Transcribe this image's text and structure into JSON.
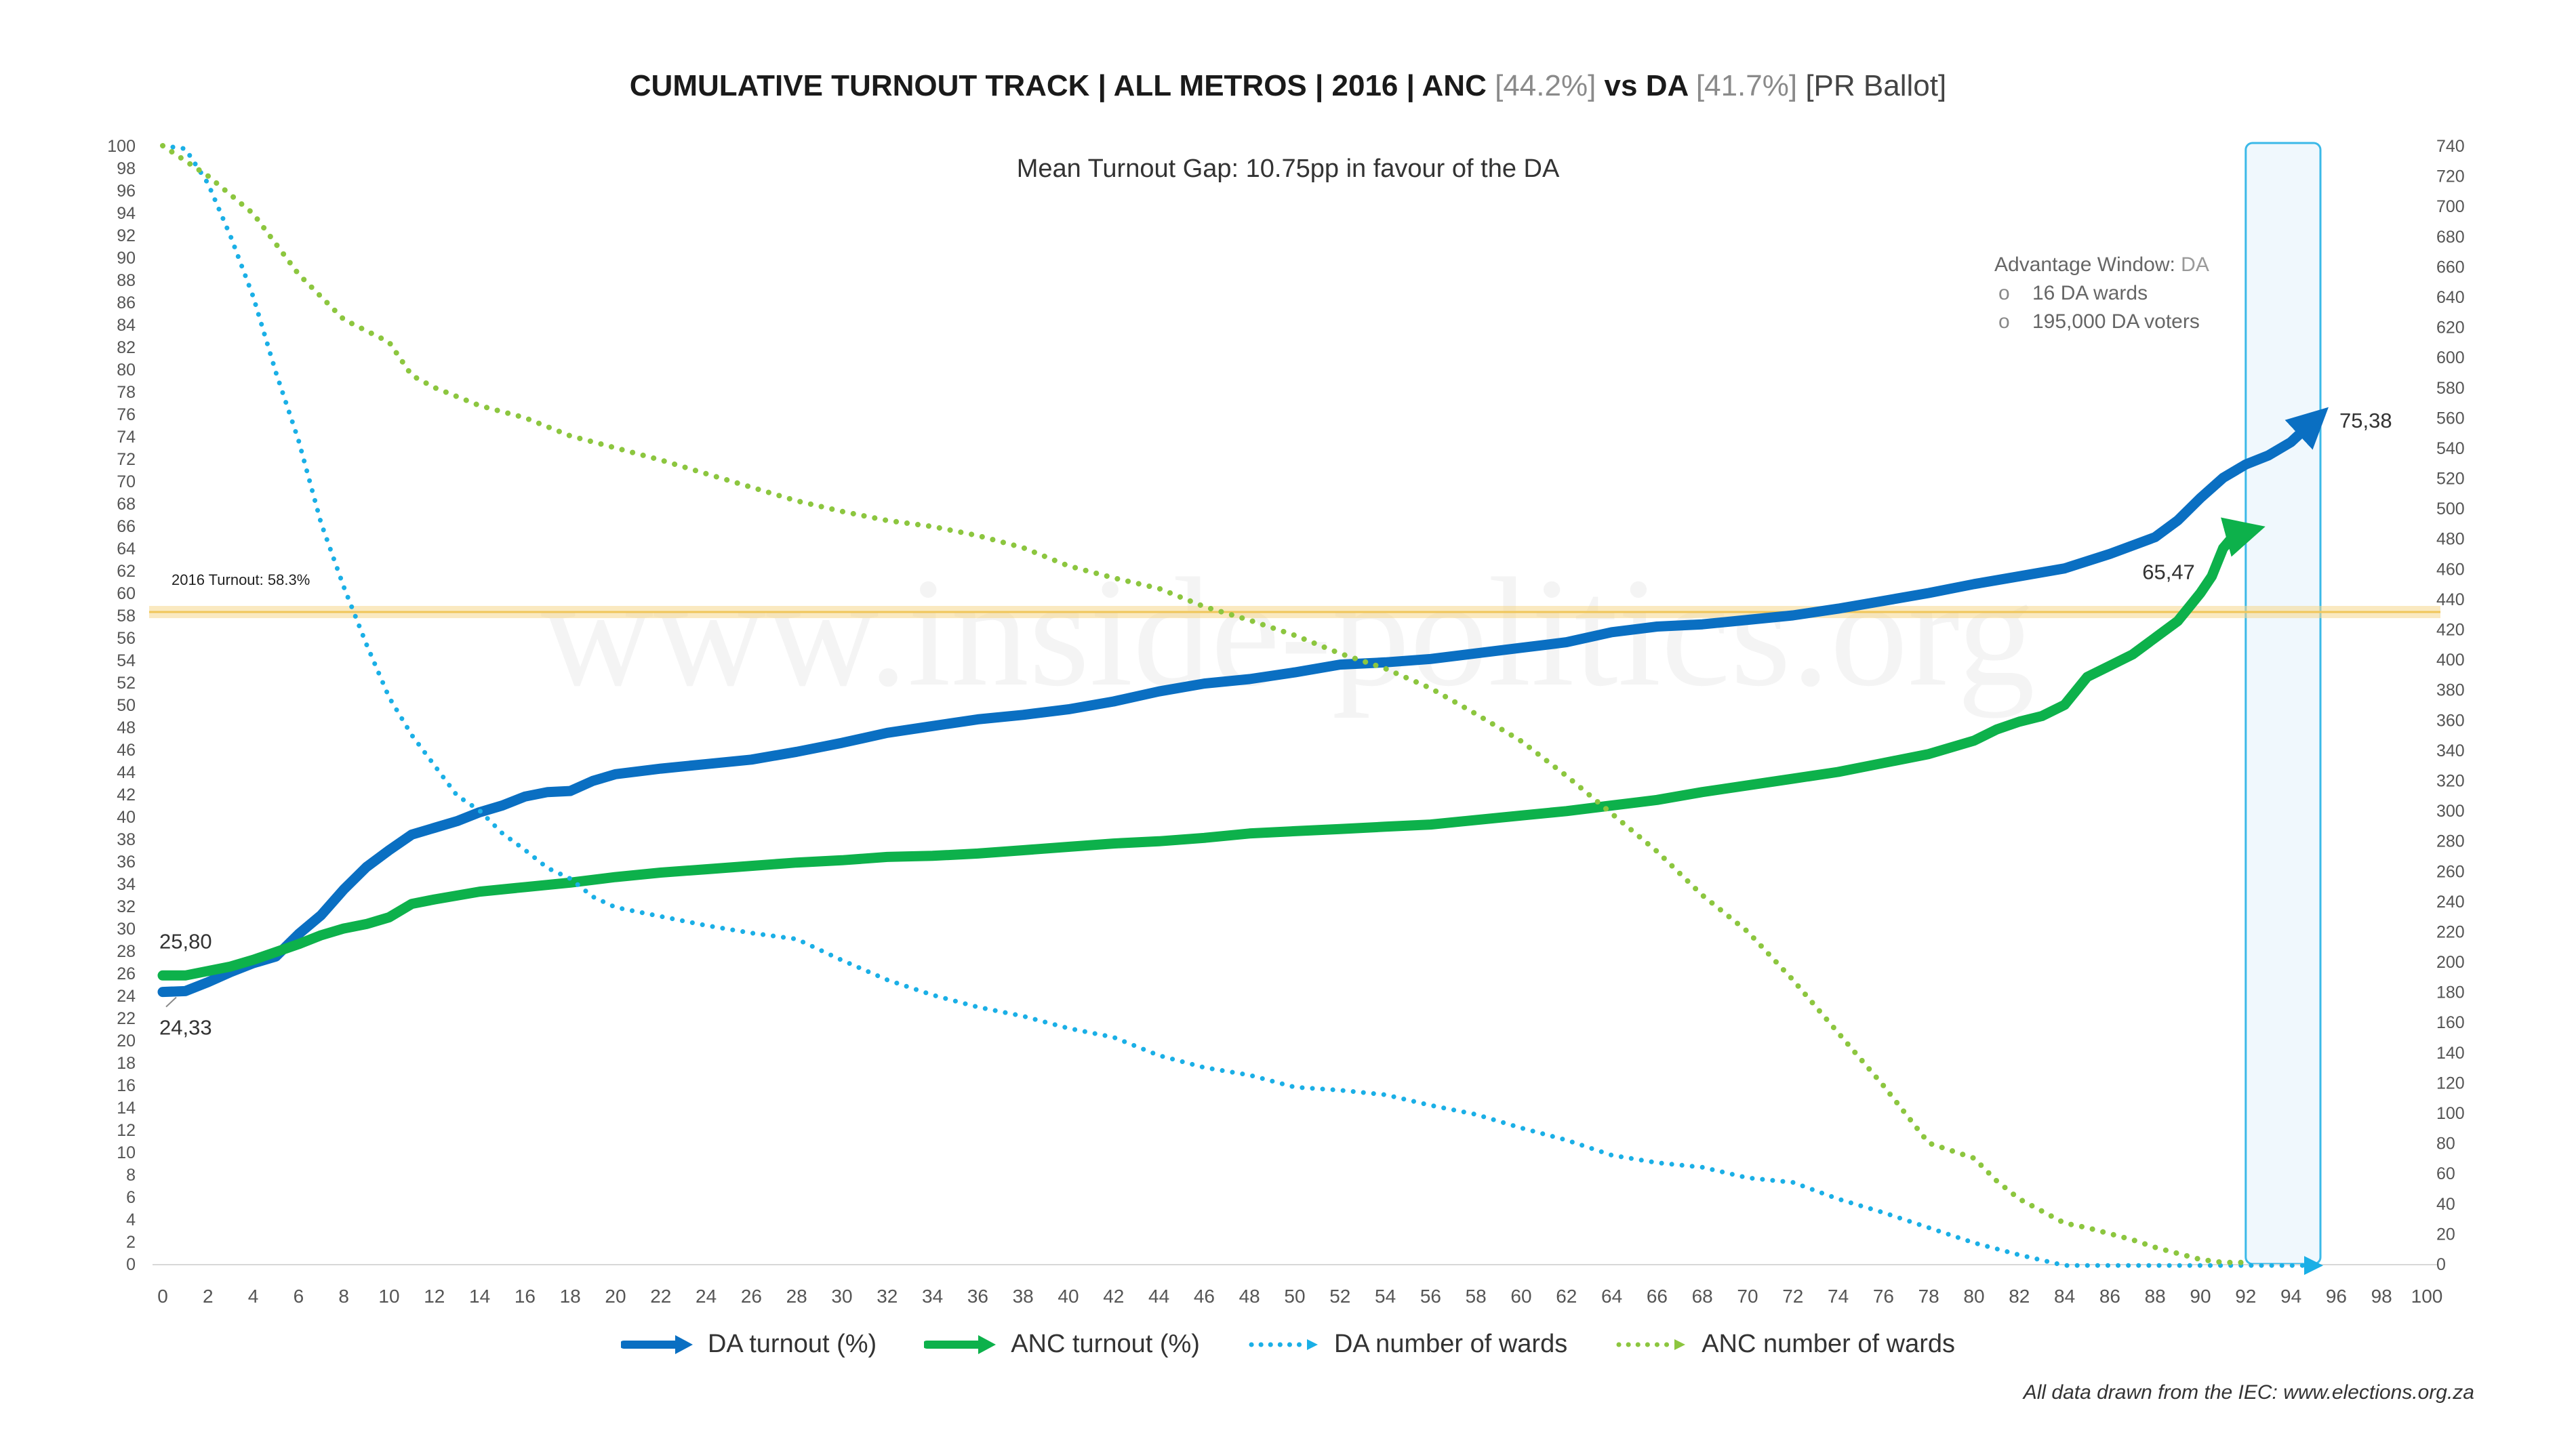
{
  "title": {
    "prefix": "CUMULATIVE TURNOUT TRACK | ALL METROS | 2016 | ANC",
    "anc_pct": "[44.2%]",
    "vs": "vs DA",
    "da_pct": "[41.7%]",
    "ballot": "[PR Ballot]"
  },
  "subtitle": "Mean Turnout Gap: 10.75pp in favour of the DA",
  "advantage_window": {
    "label": "Advantage Window:",
    "party": "DA",
    "items": [
      "16 DA wards",
      "195,000 DA voters"
    ],
    "bullet": "o"
  },
  "reference_line": {
    "label": "2016 Turnout: 58.3%",
    "value": 58.3
  },
  "watermark": "www.inside-politics.org",
  "footer": "All data drawn from the IEC: www.elections.org.za",
  "colors": {
    "da": "#0a6fc2",
    "anc": "#0db14b",
    "da_wards": "#1aafe6",
    "anc_wards": "#8cc63f",
    "window": "#3bb9e8",
    "ref": "#f5d78c"
  },
  "chart_data": {
    "type": "line",
    "x_axis": {
      "min": 0,
      "max": 100,
      "step": 2,
      "ticks": [
        0,
        2,
        4,
        6,
        8,
        10,
        12,
        14,
        16,
        18,
        20,
        22,
        24,
        26,
        28,
        30,
        32,
        34,
        36,
        38,
        40,
        42,
        44,
        46,
        48,
        50,
        52,
        54,
        56,
        58,
        60,
        62,
        64,
        66,
        68,
        70,
        72,
        74,
        76,
        78,
        80,
        82,
        84,
        86,
        88,
        90,
        92,
        94,
        96,
        98,
        100
      ]
    },
    "y_left": {
      "min": 0,
      "max": 100,
      "step": 2,
      "ticks": [
        0,
        2,
        4,
        6,
        8,
        10,
        12,
        14,
        16,
        18,
        20,
        22,
        24,
        26,
        28,
        30,
        32,
        34,
        36,
        38,
        40,
        42,
        44,
        46,
        48,
        50,
        52,
        54,
        56,
        58,
        60,
        62,
        64,
        66,
        68,
        70,
        72,
        74,
        76,
        78,
        80,
        82,
        84,
        86,
        88,
        90,
        92,
        94,
        96,
        98,
        100
      ]
    },
    "y_right": {
      "min": 0,
      "max": 740,
      "step": 20,
      "ticks": [
        0,
        20,
        40,
        60,
        80,
        100,
        120,
        140,
        160,
        180,
        200,
        220,
        240,
        260,
        280,
        300,
        320,
        340,
        360,
        380,
        400,
        420,
        440,
        460,
        480,
        500,
        520,
        540,
        560,
        580,
        600,
        620,
        640,
        660,
        680,
        700,
        720,
        740
      ]
    },
    "advantage_window_x": [
      92,
      95
    ],
    "series": [
      {
        "name": "DA turnout (%)",
        "axis": "left",
        "style": "solid-arrow",
        "x": [
          0,
          1,
          2,
          3,
          4,
          5,
          6,
          7,
          8,
          9,
          10,
          11,
          12,
          13,
          14,
          15,
          16,
          17,
          18,
          19,
          20,
          22,
          24,
          26,
          28,
          30,
          32,
          34,
          36,
          38,
          40,
          42,
          44,
          46,
          48,
          50,
          52,
          54,
          56,
          58,
          60,
          62,
          64,
          66,
          68,
          70,
          72,
          74,
          76,
          78,
          80,
          82,
          84,
          86,
          88,
          89,
          90,
          91,
          92,
          93,
          94,
          95
        ],
        "values": [
          24.33,
          24.4,
          25.2,
          26.1,
          26.9,
          27.5,
          29.5,
          31.2,
          33.5,
          35.5,
          37,
          38.4,
          39,
          39.6,
          40.4,
          41,
          41.8,
          42.2,
          42.3,
          43.2,
          43.8,
          44.3,
          44.7,
          45.1,
          45.8,
          46.6,
          47.5,
          48.1,
          48.7,
          49.1,
          49.6,
          50.3,
          51.2,
          51.9,
          52.3,
          52.9,
          53.6,
          53.8,
          54.1,
          54.6,
          55.1,
          55.6,
          56.5,
          57,
          57.2,
          57.6,
          58,
          58.6,
          59.3,
          60,
          60.8,
          61.5,
          62.2,
          63.5,
          65,
          66.5,
          68.5,
          70.3,
          71.5,
          72.3,
          73.5,
          75.38
        ]
      },
      {
        "name": "ANC turnout (%)",
        "axis": "left",
        "style": "solid-arrow",
        "x": [
          0,
          1,
          2,
          3,
          4,
          5,
          6,
          7,
          8,
          9,
          10,
          11,
          12,
          14,
          16,
          18,
          20,
          22,
          24,
          26,
          28,
          30,
          32,
          34,
          36,
          38,
          40,
          42,
          44,
          46,
          48,
          50,
          52,
          54,
          56,
          58,
          60,
          62,
          64,
          66,
          68,
          70,
          72,
          74,
          76,
          78,
          80,
          81,
          82,
          83,
          84,
          85,
          86,
          87,
          88,
          89,
          90,
          90.5,
          91,
          91.5,
          92
        ],
        "values": [
          25.8,
          25.8,
          26.2,
          26.6,
          27.2,
          27.9,
          28.6,
          29.4,
          30,
          30.4,
          31,
          32.2,
          32.6,
          33.3,
          33.7,
          34.1,
          34.6,
          35,
          35.3,
          35.6,
          35.9,
          36.1,
          36.4,
          36.5,
          36.7,
          37,
          37.3,
          37.6,
          37.8,
          38.1,
          38.5,
          38.7,
          38.9,
          39.1,
          39.3,
          39.7,
          40.1,
          40.5,
          41,
          41.5,
          42.2,
          42.8,
          43.4,
          44,
          44.8,
          45.6,
          46.8,
          47.8,
          48.5,
          49,
          50,
          52.5,
          53.5,
          54.5,
          56,
          57.5,
          60,
          61.5,
          64,
          65.2,
          65.47
        ]
      },
      {
        "name": "DA number of wards",
        "axis": "right",
        "style": "dotted-arrow",
        "x": [
          0,
          1,
          2,
          3,
          4,
          5,
          6,
          7,
          8,
          9,
          10,
          11,
          12,
          13,
          14,
          15,
          16,
          17,
          18,
          19,
          20,
          22,
          24,
          26,
          28,
          30,
          32,
          34,
          36,
          38,
          40,
          42,
          44,
          46,
          48,
          50,
          52,
          54,
          56,
          58,
          60,
          62,
          64,
          66,
          68,
          70,
          72,
          74,
          76,
          78,
          80,
          82,
          84,
          86,
          88,
          90,
          92,
          94,
          95
        ],
        "values": [
          740,
          738,
          715,
          680,
          640,
          590,
          545,
          490,
          448,
          410,
          375,
          350,
          330,
          310,
          300,
          285,
          274,
          262,
          255,
          243,
          236,
          230,
          224,
          219,
          215,
          201,
          188,
          178,
          170,
          164,
          156,
          150,
          138,
          130,
          125,
          117,
          115,
          112,
          105,
          99,
          90,
          82,
          72,
          67,
          64,
          57,
          54,
          43,
          34,
          24,
          14,
          6,
          -1,
          -1,
          -1,
          -1,
          -1,
          -1,
          -1
        ]
      },
      {
        "name": "ANC number of wards",
        "axis": "right",
        "style": "dotted",
        "x": [
          0,
          2,
          4,
          6,
          8,
          10,
          11,
          12,
          14,
          16,
          18,
          20,
          22,
          24,
          26,
          28,
          30,
          32,
          34,
          36,
          38,
          40,
          42,
          44,
          46,
          48,
          50,
          52,
          54,
          56,
          58,
          60,
          62,
          64,
          66,
          68,
          70,
          72,
          74,
          76,
          78,
          80,
          81,
          82,
          83,
          84,
          85,
          86,
          87,
          88,
          89,
          90,
          91,
          92
        ],
        "values": [
          740,
          720,
          695,
          655,
          625,
          610,
          588,
          580,
          568,
          560,
          548,
          540,
          532,
          523,
          514,
          505,
          498,
          492,
          488,
          482,
          474,
          462,
          454,
          447,
          435,
          426,
          416,
          404,
          394,
          381,
          364,
          346,
          323,
          298,
          273,
          244,
          220,
          188,
          153,
          118,
          80,
          70,
          55,
          43,
          35,
          27,
          24,
          20,
          16,
          11,
          7,
          3,
          1,
          1
        ]
      }
    ],
    "annotations": [
      {
        "text": "25,80",
        "x": 0,
        "y": 25.8,
        "series": "ANC turnout (%)"
      },
      {
        "text": "24,33",
        "x": 0,
        "y": 24.33,
        "series": "DA turnout (%)"
      },
      {
        "text": "75,38",
        "x": 95,
        "y": 75.38,
        "series": "DA turnout (%)"
      },
      {
        "text": "65,47",
        "x": 92,
        "y": 65.47,
        "series": "ANC turnout (%)"
      }
    ],
    "legend": [
      "DA turnout (%)",
      "ANC turnout (%)",
      "DA number of wards",
      "ANC number of wards"
    ],
    "legend_position": "bottom-center",
    "grid": false
  }
}
